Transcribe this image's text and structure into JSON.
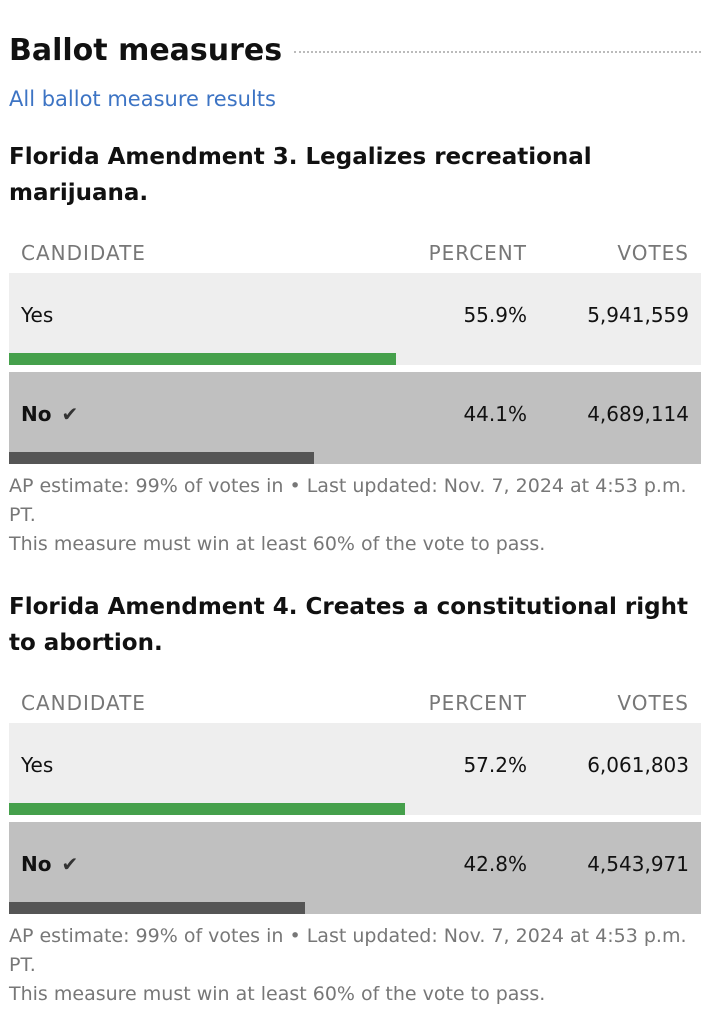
{
  "header": {
    "title": "Ballot measures",
    "link": "All ballot measure results"
  },
  "columns": {
    "candidate": "CANDIDATE",
    "percent": "PERCENT",
    "votes": "VOTES"
  },
  "colors": {
    "yes_bar": "#45a04b",
    "no_bar": "#555555",
    "link": "#3d74c4"
  },
  "measures": [
    {
      "title": "Florida Amendment 3. Legalizes recreational marijuana.",
      "rows": [
        {
          "name": "Yes",
          "percent": "55.9%",
          "pct": 55.9,
          "votes": "5,941,559"
        },
        {
          "name": "No",
          "percent": "44.1%",
          "pct": 44.1,
          "votes": "4,689,114",
          "winner": true
        }
      ],
      "status": "AP estimate: 99% of votes in • Last updated: Nov. 7, 2024 at 4:53 p.m. PT.",
      "note": "This measure must win at least 60% of the vote to pass."
    },
    {
      "title": "Florida Amendment 4. Creates a constitutional right to abortion.",
      "rows": [
        {
          "name": "Yes",
          "percent": "57.2%",
          "pct": 57.2,
          "votes": "6,061,803"
        },
        {
          "name": "No",
          "percent": "42.8%",
          "pct": 42.8,
          "votes": "4,543,971",
          "winner": true
        }
      ],
      "status": "AP estimate: 99% of votes in • Last updated: Nov. 7, 2024 at 4:53 p.m. PT.",
      "note": "This measure must win at least 60% of the vote to pass."
    }
  ]
}
